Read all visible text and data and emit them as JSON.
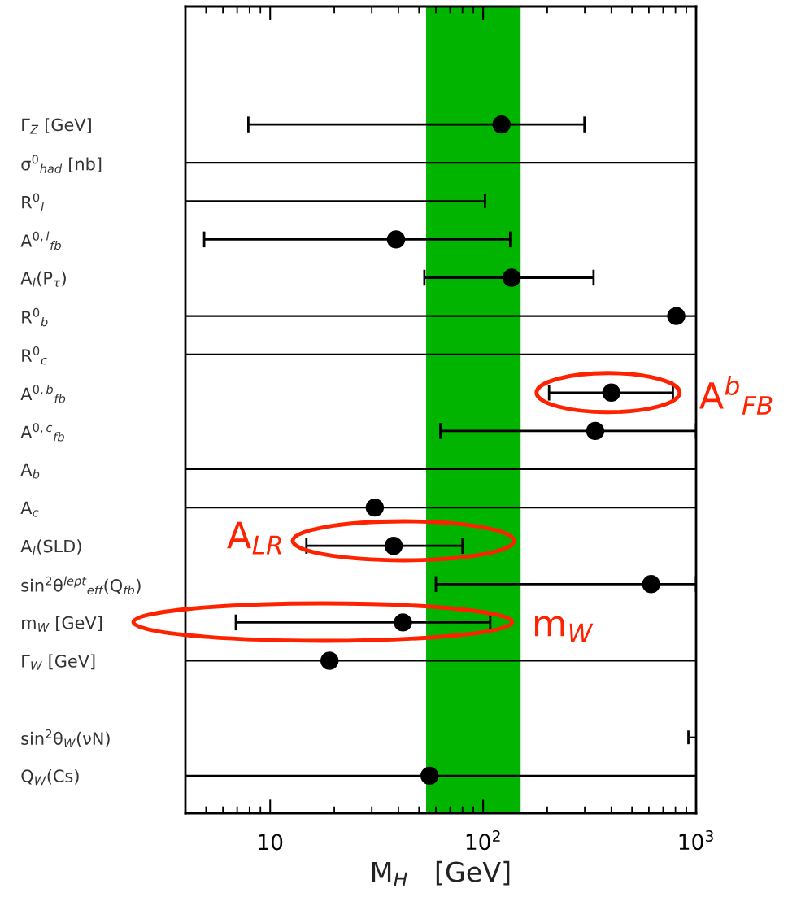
{
  "chart_data": {
    "type": "scatter",
    "orientation": "horizontal",
    "xlabel": "M$_{H}$   [GeV]",
    "log": "x",
    "categories": [
      "Γ$_{Z}$ [GeV]",
      "σ$^{0}$$_{had}$ [nb]",
      "R$^{0}$$_{l}$",
      "A$^{0,l}$$_{fb}$",
      "A$_{l}$(P$_{τ}$)",
      "R$^{0}$$_{b}$",
      "R$^{0}$$_{c}$",
      "A$^{0,b}$$_{fb}$",
      "A$^{0,c}$$_{fb}$",
      "A$_{b}$",
      "A$_{c}$",
      "A$_{l}$(SLD)",
      "sin$^{2}$θ$^{lept}$$_{eff}$(Q$_{fb}$)",
      "m$_{W}$ [GeV]",
      "Γ$_{W}$ [GeV]",
      null,
      "sin$^{2}$θ$_{W}$(νN)",
      "Q$_{W}$(Cs)"
    ],
    "series": [
      {
        "color": "#000000",
        "values": [
          122,
          null,
          null,
          39,
          136,
          807,
          null,
          400,
          336,
          null,
          31,
          38,
          615,
          42,
          19,
          null,
          null,
          56
        ],
        "errors": [
          [
            7.9,
            299
          ],
          null,
          null,
          [
            4.9,
            134
          ],
          [
            53,
            330
          ],
          null,
          null,
          [
            204,
            778
          ],
          [
            63,
            1000
          ],
          null,
          null,
          [
            14.8,
            80
          ],
          [
            60,
            1000
          ],
          [
            6.9,
            108
          ],
          null,
          null,
          null,
          null
        ]
      },
      {
        "type": "bar",
        "color": "#000000",
        "base": [
          null,
          4,
          4,
          null,
          null,
          4,
          4,
          null,
          null,
          4,
          4,
          null,
          null,
          null,
          4,
          null,
          920,
          4
        ],
        "values": [
          null,
          996,
          98,
          null,
          null,
          996,
          996,
          null,
          null,
          996,
          996,
          null,
          null,
          null,
          996,
          null,
          80,
          996
        ]
      }
    ],
    "xlim": [
      4,
      1000
    ],
    "xticks": [
      10,
      {
        "value": 100,
        "label": "10$^{2}$"
      },
      {
        "value": 1000,
        "label": "10$^{3}$"
      }
    ],
    "bands": [
      {
        "axis": "x",
        "from": 54,
        "to": 150,
        "color": "#00b400"
      }
    ],
    "marker": "circle",
    "annotations": [
      {
        "text": "A$^{b}$$_{FB}$",
        "x": 400,
        "y": "A$^{0,b}$$_{fb}$"
      },
      "A$_{LR}$",
      "m$_{W}$"
    ]
  }
}
